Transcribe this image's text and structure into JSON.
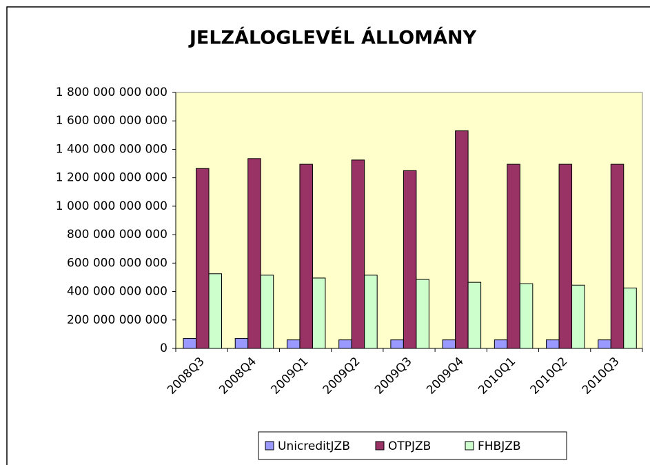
{
  "chart_data": {
    "type": "bar",
    "title": "JELZÁLOGLEVÉL ÁLLOMÁNY",
    "categories": [
      "2008Q3",
      "2008Q4",
      "2009Q1",
      "2009Q2",
      "2009Q3",
      "2009Q4",
      "2010Q1",
      "2010Q2",
      "2010Q3"
    ],
    "series": [
      {
        "name": "UnicreditJZB",
        "color": "#9999ff",
        "values": [
          70000000000,
          70000000000,
          60000000000,
          60000000000,
          60000000000,
          60000000000,
          60000000000,
          60000000000,
          60000000000
        ]
      },
      {
        "name": "OTPJZB",
        "color": "#993366",
        "values": [
          1265000000000,
          1335000000000,
          1295000000000,
          1325000000000,
          1250000000000,
          1530000000000,
          1295000000000,
          1295000000000,
          1295000000000
        ]
      },
      {
        "name": "FHBJZB",
        "color": "#ccffcc",
        "values": [
          525000000000,
          515000000000,
          495000000000,
          515000000000,
          485000000000,
          465000000000,
          455000000000,
          445000000000,
          425000000000
        ]
      }
    ],
    "ylim": [
      0,
      1800000000000
    ],
    "yticks": [
      0,
      {
        "value": 200000000000,
        "label": "200 000 000 000"
      },
      {
        "value": 400000000000,
        "label": "400 000 000 000"
      },
      {
        "value": 600000000000,
        "label": "600 000 000 000"
      },
      {
        "value": 800000000000,
        "label": "800 000 000 000"
      },
      {
        "value": 1000000000000,
        "label": "1 000 000 000 000"
      },
      {
        "value": 1200000000000,
        "label": "1 200 000 000 000"
      },
      {
        "value": 1400000000000,
        "label": "1 400 000 000 000"
      },
      {
        "value": 1600000000000,
        "label": "1 600 000 000 000"
      },
      {
        "value": 1800000000000,
        "label": "1 800 000 000 000"
      }
    ],
    "plot_background": "#ffffcc",
    "legend": "bottom"
  }
}
